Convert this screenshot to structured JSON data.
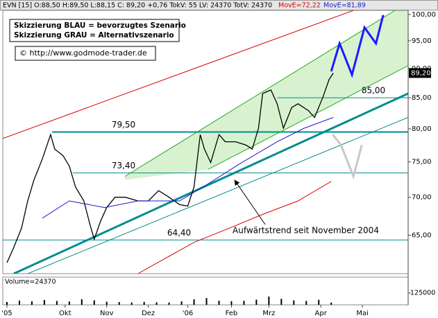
{
  "chart_data": {
    "type": "line",
    "title": "EVN [15] O:88,50 H:89,50 L:88,15 C: 89,20 +0,76 TokV: 55 LV: 24370 TotV: 24370",
    "log_scale": true,
    "xlim": [
      0,
      195
    ],
    "xticks": [
      {
        "value": 2,
        "label": "'05"
      },
      {
        "value": 30,
        "label": "Okt"
      },
      {
        "value": 50,
        "label": "Nov"
      },
      {
        "value": 70,
        "label": "Dez"
      },
      {
        "value": 89,
        "label": "'06"
      },
      {
        "value": 110,
        "label": "Feb"
      },
      {
        "value": 128,
        "label": "Mrz"
      },
      {
        "value": 153,
        "label": "Apr"
      },
      {
        "value": 173,
        "label": "Mai"
      }
    ],
    "ylim": [
      60.3,
      100.8
    ],
    "yticks": [
      {
        "value": 65,
        "label": "65,00"
      },
      {
        "value": 70,
        "label": "70,00"
      },
      {
        "value": 75,
        "label": "75,00"
      },
      {
        "value": 80,
        "label": "80,00"
      },
      {
        "value": 85,
        "label": "85,00"
      },
      {
        "value": 90,
        "label": "90,00"
      },
      {
        "value": 95,
        "label": "95,00"
      },
      {
        "value": 100,
        "label": "100,00"
      }
    ],
    "series": [
      {
        "color": "#000000",
        "x": [
          2,
          5,
          9,
          12,
          15,
          19,
          23,
          25,
          29,
          32,
          35,
          39,
          42,
          44,
          47,
          50,
          54,
          59,
          65,
          70,
          75,
          80,
          85,
          89,
          92,
          95,
          97,
          100,
          104,
          107,
          112,
          117,
          120,
          123,
          125,
          129,
          132,
          135,
          139,
          142,
          147,
          150,
          154,
          157,
          159
        ],
        "values": [
          61.6,
          63.3,
          65.9,
          69.5,
          72.4,
          75.4,
          79.1,
          76.9,
          75.9,
          74.4,
          71.4,
          69.5,
          66.3,
          64.5,
          66.8,
          68.6,
          70.0,
          70.0,
          69.5,
          69.5,
          70.9,
          70.0,
          69.0,
          68.8,
          71.4,
          79.1,
          76.9,
          74.9,
          79.1,
          78.0,
          78.0,
          77.5,
          76.9,
          80.1,
          85.7,
          86.3,
          84.0,
          80.1,
          83.4,
          84.0,
          82.9,
          81.8,
          85.1,
          88.1,
          89.2
        ]
      },
      {
        "name": "MovE=72,22",
        "color": "#e00000",
        "x": [
          65,
          92,
          109,
          125,
          142,
          158
        ],
        "values": [
          60.3,
          64.1,
          65.9,
          67.7,
          69.5,
          72.2
        ]
      },
      {
        "name": "MovE=81,89",
        "color": "#1a1acc",
        "x": [
          19,
          32,
          49,
          65,
          85,
          99,
          115,
          132,
          145,
          159
        ],
        "values": [
          67.2,
          69.5,
          68.6,
          69.5,
          69.5,
          71.9,
          74.9,
          78.0,
          80.1,
          81.8
        ]
      },
      {
        "color": "#1a1aff",
        "x": [
          158,
          162,
          168,
          174,
          179.5,
          183
        ],
        "values": [
          89.5,
          94.5,
          88.9,
          97.5,
          94.5,
          99.9
        ]
      },
      {
        "color": "#c8c8c8",
        "x": [
          158.7,
          162.7,
          168.7,
          172.7
        ],
        "values": [
          79.1,
          77.5,
          72.9,
          77.5
        ]
      }
    ],
    "trend_lines": [
      {
        "color": "#e00000",
        "x": [
          0,
          168.7
        ],
        "values": [
          78.5,
          100.8
        ]
      },
      {
        "color": "#008c8c",
        "x": [
          5.3,
          195
        ],
        "values": [
          60.3,
          85.7
        ]
      },
      {
        "color": "#008c8c",
        "x": [
          12,
          195
        ],
        "values": [
          60.3,
          81.8
        ]
      },
      {
        "color": "#22aa22",
        "x": [
          58.7,
          188.7
        ],
        "values": [
          72.9,
          100.8
        ]
      },
      {
        "color": "#22aa22",
        "x": [
          98.7,
          195
        ],
        "values": [
          73.9,
          90.5
        ]
      }
    ],
    "levels": [
      {
        "value": 79.5,
        "label": "79,50",
        "x_start": 23.7
      },
      {
        "value": 73.4,
        "label": "73,40",
        "x_start": 33.7
      },
      {
        "value": 64.4,
        "label": "64,40",
        "x_start": 0
      },
      {
        "value": 85.0,
        "label": "85,00",
        "x_start": 132
      }
    ],
    "last_price": {
      "value": 89.2,
      "label": "89,20"
    },
    "notes": [
      "Skizzierung BLAU = bevorzugtes Szenario",
      "Skizzierung GRAU = Alternativszenario",
      "© http://www.godmode-trader.de"
    ],
    "trend_note": "Aufwärtstrend seit November 2004",
    "volume": {
      "label": "Volume=24370",
      "color": "#000000",
      "x": [
        2,
        8,
        14,
        20,
        26,
        32,
        38,
        44,
        50,
        56,
        62,
        68,
        74,
        80,
        86,
        92,
        98,
        104,
        110,
        116,
        122,
        128,
        134,
        140,
        146,
        152,
        158
      ],
      "values": [
        30000,
        45000,
        38000,
        52000,
        41000,
        35000,
        60000,
        48000,
        33000,
        29000,
        25000,
        31000,
        27000,
        24000,
        36000,
        58000,
        72000,
        44000,
        39000,
        42000,
        55000,
        88000,
        64000,
        47000,
        41000,
        53000,
        24370
      ],
      "ylim": [
        0,
        294000
      ],
      "yticks": [
        125000
      ]
    }
  }
}
